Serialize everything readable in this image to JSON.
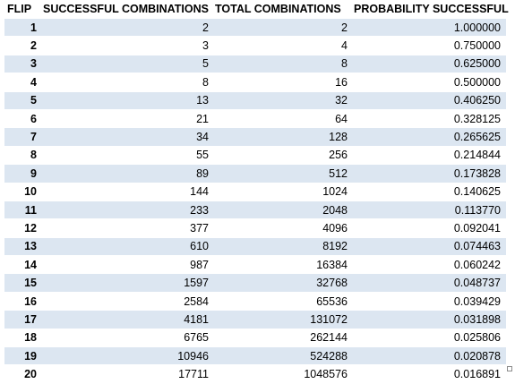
{
  "headers": {
    "flip": "FLIP",
    "successful": "SUCCESSFUL COMBINATIONS",
    "total": "TOTAL COMBINATIONS",
    "probability": "PROBABILITY SUCCESSFUL"
  },
  "rows": [
    {
      "flip": "1",
      "successful": "2",
      "total": "2",
      "probability": "1.000000"
    },
    {
      "flip": "2",
      "successful": "3",
      "total": "4",
      "probability": "0.750000"
    },
    {
      "flip": "3",
      "successful": "5",
      "total": "8",
      "probability": "0.625000"
    },
    {
      "flip": "4",
      "successful": "8",
      "total": "16",
      "probability": "0.500000"
    },
    {
      "flip": "5",
      "successful": "13",
      "total": "32",
      "probability": "0.406250"
    },
    {
      "flip": "6",
      "successful": "21",
      "total": "64",
      "probability": "0.328125"
    },
    {
      "flip": "7",
      "successful": "34",
      "total": "128",
      "probability": "0.265625"
    },
    {
      "flip": "8",
      "successful": "55",
      "total": "256",
      "probability": "0.214844"
    },
    {
      "flip": "9",
      "successful": "89",
      "total": "512",
      "probability": "0.173828"
    },
    {
      "flip": "10",
      "successful": "144",
      "total": "1024",
      "probability": "0.140625"
    },
    {
      "flip": "11",
      "successful": "233",
      "total": "2048",
      "probability": "0.113770"
    },
    {
      "flip": "12",
      "successful": "377",
      "total": "4096",
      "probability": "0.092041"
    },
    {
      "flip": "13",
      "successful": "610",
      "total": "8192",
      "probability": "0.074463"
    },
    {
      "flip": "14",
      "successful": "987",
      "total": "16384",
      "probability": "0.060242"
    },
    {
      "flip": "15",
      "successful": "1597",
      "total": "32768",
      "probability": "0.048737"
    },
    {
      "flip": "16",
      "successful": "2584",
      "total": "65536",
      "probability": "0.039429"
    },
    {
      "flip": "17",
      "successful": "4181",
      "total": "131072",
      "probability": "0.031898"
    },
    {
      "flip": "18",
      "successful": "6765",
      "total": "262144",
      "probability": "0.025806"
    },
    {
      "flip": "19",
      "successful": "10946",
      "total": "524288",
      "probability": "0.020878"
    },
    {
      "flip": "20",
      "successful": "17711",
      "total": "1048576",
      "probability": "0.016891"
    }
  ],
  "colors": {
    "band": "#dce6f1",
    "background": "#ffffff",
    "text": "#000000"
  },
  "icons": {
    "resize_handle": "resize-handle-icon"
  }
}
